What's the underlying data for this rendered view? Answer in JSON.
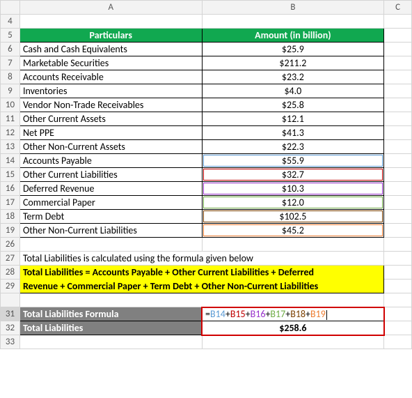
{
  "columns": {
    "a": "A",
    "b": "B",
    "c": "C"
  },
  "header": {
    "particulars": "Particulars",
    "amount": "Amount (in billion)"
  },
  "rows": [
    {
      "n": 6,
      "label": "Cash and Cash Equivalents",
      "value": "$25.9"
    },
    {
      "n": 7,
      "label": "Marketable Securities",
      "value": "$211.2"
    },
    {
      "n": 8,
      "label": "Accounts Receivable",
      "value": "$23.2"
    },
    {
      "n": 9,
      "label": "Inventories",
      "value": "$4.0"
    },
    {
      "n": 10,
      "label": "Vendor Non-Trade Receivables",
      "value": "$25.8"
    },
    {
      "n": 11,
      "label": "Other Current Assets",
      "value": "$12.1"
    },
    {
      "n": 12,
      "label": "Net PPE",
      "value": "$41.3"
    },
    {
      "n": 13,
      "label": "Other Non-Current Assets",
      "value": "$22.3"
    },
    {
      "n": 14,
      "label": "Accounts Payable",
      "value": "$55.9",
      "hl": "#5b9bd5"
    },
    {
      "n": 15,
      "label": "Other Current Liabilities",
      "value": "$32.7",
      "hl": "#c00000"
    },
    {
      "n": 16,
      "label": "Deferred Revenue",
      "value": "$10.3",
      "hl": "#9933cc"
    },
    {
      "n": 17,
      "label": "Commercial Paper",
      "value": "$12.0",
      "hl": "#70ad47"
    },
    {
      "n": 18,
      "label": "Term Debt",
      "value": "$102.5",
      "hl": "#7b3f00"
    },
    {
      "n": 19,
      "label": "Other Non-Current Liabilities",
      "value": "$45.2",
      "hl": "#ed7d31"
    }
  ],
  "note27": "Total Liabilities is calculated using the formula given below",
  "formula_desc_line1": "Total Liabilities = Accounts Payable + Other Current Liabilities + Deferred",
  "formula_desc_line2": "Revenue + Commercial Paper + Term Debt + Other Non-Current Liabilities",
  "result": {
    "formula_label": "Total Liabilities Formula",
    "total_label": "Total Liabilities",
    "total_value": "$258.6"
  },
  "formula_parts": {
    "eq": "=",
    "refs": [
      {
        "t": "B14",
        "c": "#5b9bd5"
      },
      {
        "t": "B15",
        "c": "#c00000"
      },
      {
        "t": "B16",
        "c": "#9933cc"
      },
      {
        "t": "B17",
        "c": "#70ad47"
      },
      {
        "t": "B18",
        "c": "#7b3f00"
      },
      {
        "t": "B19",
        "c": "#ed7d31"
      }
    ],
    "sep": "+"
  },
  "row_numbers": {
    "r4": "4",
    "r5": "5",
    "r26": "26",
    "r27": "27",
    "r28": "28",
    "r29": "29",
    "r31": "31",
    "r32": "32",
    "r33": "33"
  },
  "colors": {
    "header_green": "#11a850",
    "yellow": "#ffff00",
    "grey": "#808080",
    "redbox": "#d00000"
  }
}
